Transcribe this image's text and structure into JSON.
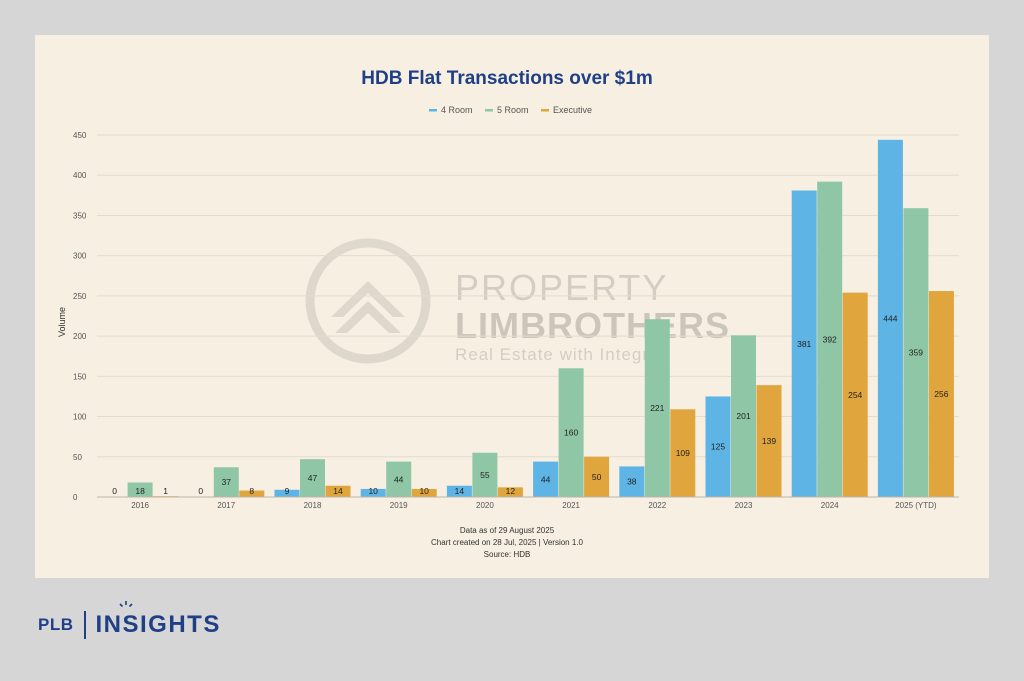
{
  "brand": {
    "left_text": "PLB",
    "right_text": "INSIGHTS",
    "color": "#1f3f86"
  },
  "watermark": {
    "line1": "PROPERTY",
    "line2": "LIMBROTHERS",
    "line3": "Real Estate with Integrity"
  },
  "footer": {
    "line1": "Data as of 29 August 2025",
    "line2": "Chart created on 28 Jul, 2025 | Version 1.0",
    "line3": "Source: HDB"
  },
  "chart_data": {
    "type": "bar",
    "title": "HDB Flat Transactions over $1m",
    "xlabel": "",
    "ylabel": "Volume",
    "ylim": [
      0,
      450
    ],
    "yticks": [
      0,
      50,
      100,
      150,
      200,
      250,
      300,
      350,
      400,
      450
    ],
    "grid": true,
    "legend_position": "top-center",
    "categories": [
      "2016",
      "2017",
      "2018",
      "2019",
      "2020",
      "2021",
      "2022",
      "2023",
      "2024",
      "2025 (YTD)"
    ],
    "series": [
      {
        "name": "4 Room",
        "color": "#5fb4e6",
        "values": [
          0,
          0,
          9,
          10,
          14,
          44,
          38,
          125,
          381,
          444
        ]
      },
      {
        "name": "5 Room",
        "color": "#8fc7a6",
        "values": [
          18,
          37,
          47,
          44,
          55,
          160,
          221,
          201,
          392,
          359
        ]
      },
      {
        "name": "Executive",
        "color": "#e0a53c",
        "values": [
          1,
          8,
          14,
          10,
          12,
          50,
          109,
          139,
          254,
          256
        ]
      }
    ]
  }
}
